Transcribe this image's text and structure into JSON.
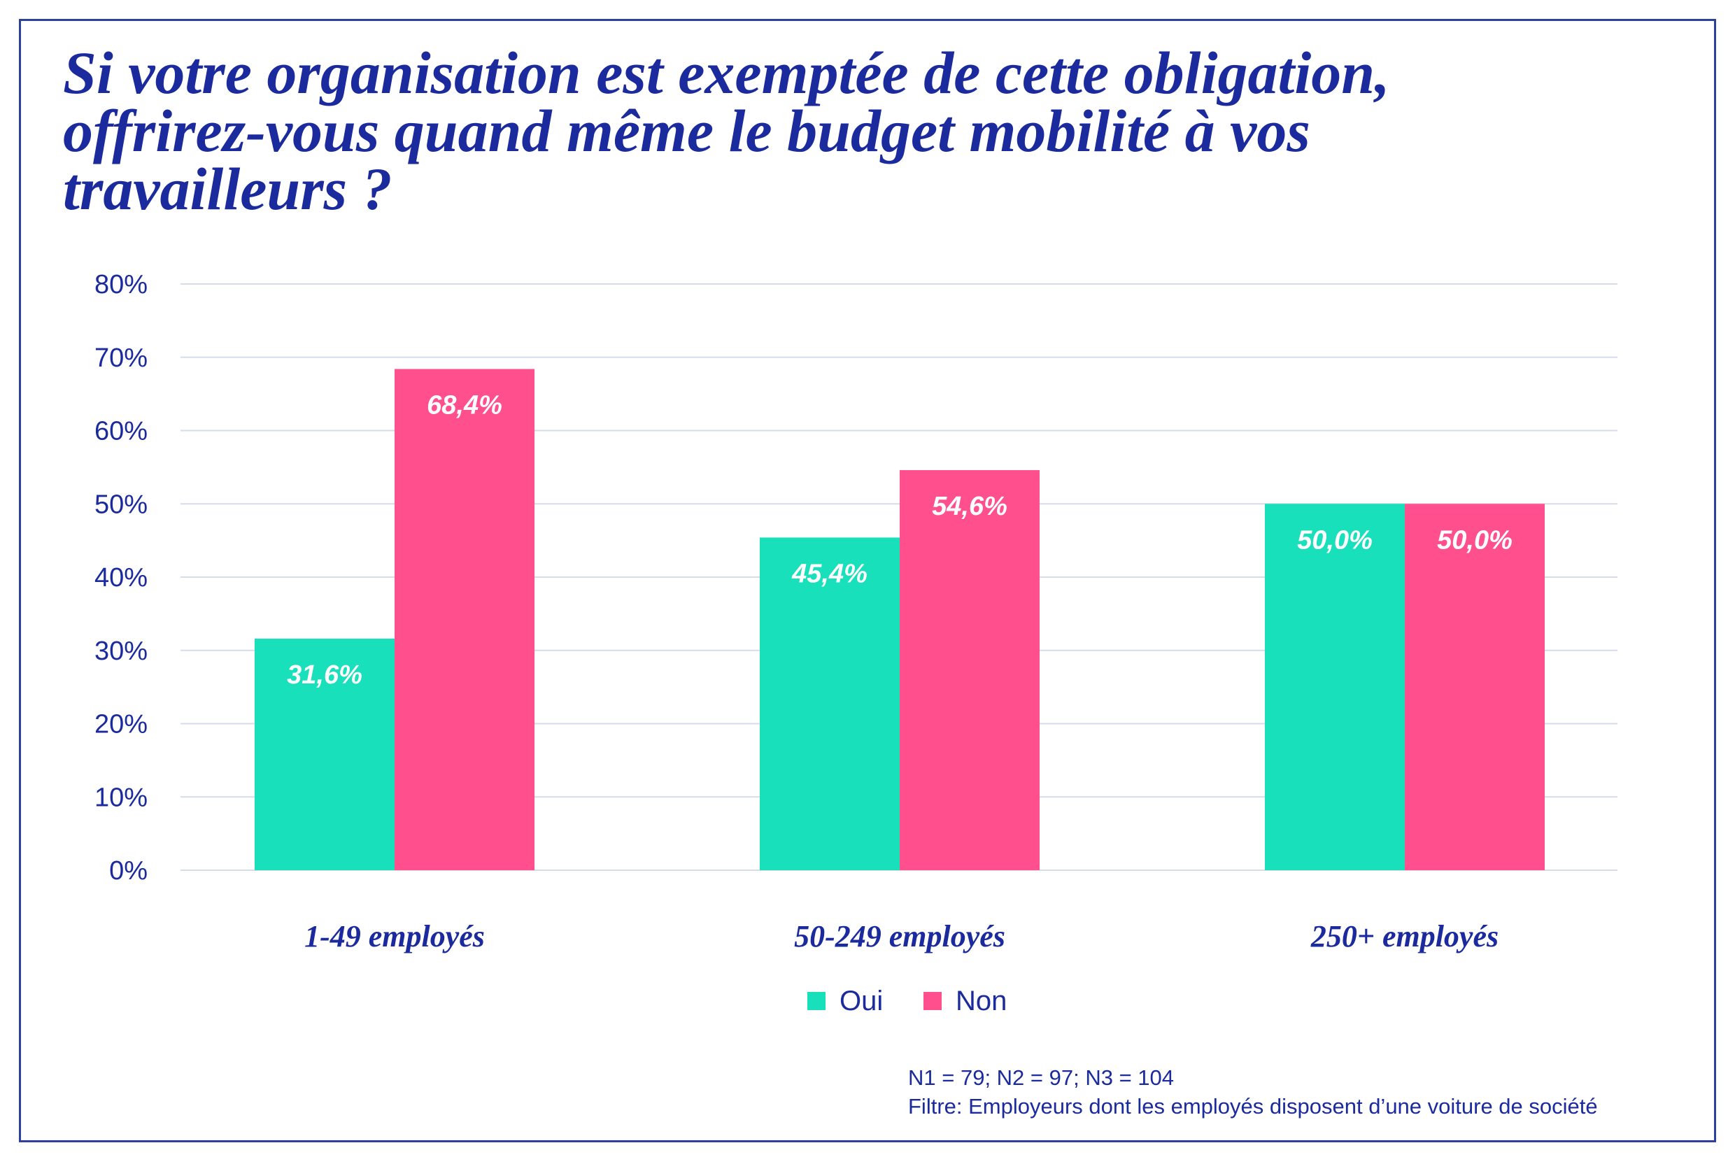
{
  "chart_data": {
    "type": "bar",
    "title": "Si votre organisation est exemptée de cette obligation,\noffrirez-vous quand même le budget mobilité à vos\ntravailleurs ?",
    "categories": [
      "1-49 employés",
      "50-249 employés",
      "250+ employés"
    ],
    "series": [
      {
        "name": "Oui",
        "color": "#17e0ba",
        "values": [
          31.6,
          45.4,
          50.0
        ],
        "labels": [
          "31,6%",
          "45,4%",
          "50,0%"
        ]
      },
      {
        "name": "Non",
        "color": "#ff4f8c",
        "values": [
          68.4,
          54.6,
          50.0
        ],
        "labels": [
          "68,4%",
          "54,6%",
          "50,0%"
        ]
      }
    ],
    "yticks": [
      "0%",
      "10%",
      "20%",
      "30%",
      "40%",
      "50%",
      "60%",
      "70%",
      "80%"
    ],
    "ylim": [
      0,
      80
    ],
    "grid": true,
    "legend": "bottom-center"
  },
  "footnotes": {
    "sample_sizes": "N1 = 79; N2 = 97; N3 = 104",
    "filter": "Filtre: Employeurs dont les employés disposent d’une voiture de société"
  }
}
